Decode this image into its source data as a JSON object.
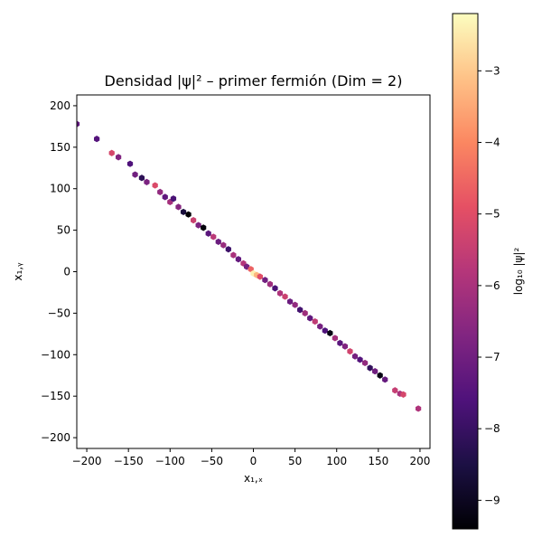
{
  "chart_data": {
    "type": "scatter",
    "title": "Densidad |ψ|² – primer fermión (Dim = 2)",
    "xlabel": "x₁,ₓ",
    "ylabel": "x₁,ᵧ",
    "xlim": [
      -212,
      212
    ],
    "ylim": [
      -213,
      213
    ],
    "xticks": [
      -200,
      -150,
      -100,
      -50,
      0,
      50,
      100,
      150,
      200
    ],
    "xtick_labels": [
      "−200",
      "−150",
      "−100",
      "−50",
      "0",
      "50",
      "100",
      "150",
      "200"
    ],
    "yticks": [
      200,
      150,
      100,
      50,
      0,
      -50,
      -100,
      -150,
      -200
    ],
    "ytick_labels": [
      "200",
      "150",
      "100",
      "50",
      "0",
      "−50",
      "−100",
      "−150",
      "−200"
    ],
    "grid": false,
    "colorbar": {
      "label": "log₁₀ |ψ|²",
      "range": [
        -9.4,
        -2.2
      ],
      "colormap": "magma",
      "ticks": [
        -3,
        -4,
        -5,
        -6,
        -7,
        -8,
        -9
      ],
      "tick_labels": [
        "−3",
        "−4",
        "−5",
        "−6",
        "−7",
        "−8",
        "−9"
      ]
    },
    "points": [
      {
        "x": -212,
        "y": 178,
        "v": -7.3
      },
      {
        "x": -188,
        "y": 160,
        "v": -7.5
      },
      {
        "x": -170,
        "y": 143,
        "v": -5.2
      },
      {
        "x": -162,
        "y": 138,
        "v": -6.7
      },
      {
        "x": -148,
        "y": 130,
        "v": -7.6
      },
      {
        "x": -142,
        "y": 117,
        "v": -7.0
      },
      {
        "x": -134,
        "y": 113,
        "v": -8.2
      },
      {
        "x": -128,
        "y": 108,
        "v": -6.8
      },
      {
        "x": -118,
        "y": 104,
        "v": -5.1
      },
      {
        "x": -112,
        "y": 96,
        "v": -6.4
      },
      {
        "x": -106,
        "y": 90,
        "v": -7.3
      },
      {
        "x": -100,
        "y": 84,
        "v": -6.1
      },
      {
        "x": -96,
        "y": 88,
        "v": -7.7
      },
      {
        "x": -90,
        "y": 78,
        "v": -6.6
      },
      {
        "x": -84,
        "y": 72,
        "v": -8.6
      },
      {
        "x": -78,
        "y": 69,
        "v": -9.4
      },
      {
        "x": -72,
        "y": 62,
        "v": -5.4
      },
      {
        "x": -66,
        "y": 56,
        "v": -6.8
      },
      {
        "x": -60,
        "y": 53,
        "v": -9.3
      },
      {
        "x": -54,
        "y": 46,
        "v": -7.4
      },
      {
        "x": -48,
        "y": 42,
        "v": -5.7
      },
      {
        "x": -42,
        "y": 36,
        "v": -7.1
      },
      {
        "x": -36,
        "y": 32,
        "v": -6.3
      },
      {
        "x": -30,
        "y": 27,
        "v": -7.9
      },
      {
        "x": -24,
        "y": 20,
        "v": -6.0
      },
      {
        "x": -18,
        "y": 15,
        "v": -7.2
      },
      {
        "x": -12,
        "y": 10,
        "v": -5.8
      },
      {
        "x": -8,
        "y": 6,
        "v": -6.9
      },
      {
        "x": -3,
        "y": 3,
        "v": -4.6
      },
      {
        "x": 0,
        "y": -2,
        "v": -2.4
      },
      {
        "x": 4,
        "y": -4,
        "v": -3.3
      },
      {
        "x": 8,
        "y": -6,
        "v": -5.0
      },
      {
        "x": 14,
        "y": -10,
        "v": -7.0
      },
      {
        "x": 20,
        "y": -15,
        "v": -6.2
      },
      {
        "x": 26,
        "y": -20,
        "v": -7.7
      },
      {
        "x": 32,
        "y": -26,
        "v": -5.9
      },
      {
        "x": 38,
        "y": -30,
        "v": -5.4
      },
      {
        "x": 44,
        "y": -36,
        "v": -7.1
      },
      {
        "x": 50,
        "y": -40,
        "v": -6.4
      },
      {
        "x": 56,
        "y": -46,
        "v": -7.8
      },
      {
        "x": 62,
        "y": -50,
        "v": -6.2
      },
      {
        "x": 68,
        "y": -56,
        "v": -7.3
      },
      {
        "x": 74,
        "y": -60,
        "v": -5.6
      },
      {
        "x": 80,
        "y": -66,
        "v": -6.9
      },
      {
        "x": 86,
        "y": -71,
        "v": -7.6
      },
      {
        "x": 92,
        "y": -74,
        "v": -9.2
      },
      {
        "x": 98,
        "y": -80,
        "v": -6.1
      },
      {
        "x": 104,
        "y": -86,
        "v": -7.4
      },
      {
        "x": 110,
        "y": -90,
        "v": -6.7
      },
      {
        "x": 116,
        "y": -96,
        "v": -5.3
      },
      {
        "x": 122,
        "y": -102,
        "v": -6.9
      },
      {
        "x": 128,
        "y": -106,
        "v": -7.5
      },
      {
        "x": 134,
        "y": -110,
        "v": -6.4
      },
      {
        "x": 140,
        "y": -116,
        "v": -8.1
      },
      {
        "x": 146,
        "y": -120,
        "v": -7.0
      },
      {
        "x": 152,
        "y": -125,
        "v": -9.2
      },
      {
        "x": 158,
        "y": -130,
        "v": -7.2
      },
      {
        "x": 170,
        "y": -143,
        "v": -5.5
      },
      {
        "x": 176,
        "y": -147,
        "v": -6.0
      },
      {
        "x": 180,
        "y": -148,
        "v": -5.2
      },
      {
        "x": 198,
        "y": -165,
        "v": -5.9
      }
    ]
  }
}
